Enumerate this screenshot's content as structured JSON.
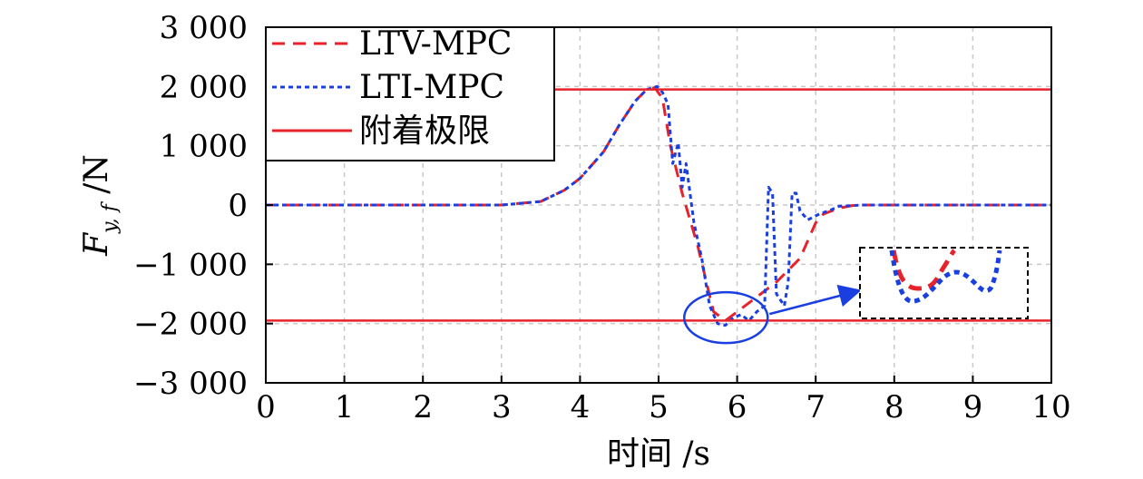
{
  "chart_data": {
    "type": "line",
    "title": "",
    "xlabel": "时间 /s",
    "ylabel": "F_{y,f} /N",
    "ylabel_main": "F",
    "ylabel_sub": "y, f",
    "ylabel_unit": " /N",
    "xlim": [
      0,
      10
    ],
    "ylim": [
      -3000,
      3000
    ],
    "x_ticks": [
      0,
      1,
      2,
      3,
      4,
      5,
      6,
      7,
      8,
      9,
      10
    ],
    "x_tick_labels": [
      "0",
      "1",
      "2",
      "3",
      "4",
      "5",
      "6",
      "7",
      "8",
      "9",
      "10"
    ],
    "y_ticks": [
      3000,
      2000,
      1000,
      0,
      -1000,
      -2000,
      -3000
    ],
    "y_tick_labels": [
      "3 000",
      "2 000",
      "1 000",
      "0",
      "−1 000",
      "−2 000",
      "−3 000"
    ],
    "grid": true,
    "legend_position": "top-left",
    "series": [
      {
        "name": "LTV-MPC",
        "color": "#e8222a",
        "style": "dashed",
        "points": [
          [
            0,
            0
          ],
          [
            3,
            0
          ],
          [
            3.5,
            60
          ],
          [
            3.8,
            250
          ],
          [
            4.0,
            450
          ],
          [
            4.3,
            900
          ],
          [
            4.5,
            1350
          ],
          [
            4.7,
            1750
          ],
          [
            4.85,
            1950
          ],
          [
            4.95,
            1980
          ],
          [
            5.05,
            1800
          ],
          [
            5.15,
            1000
          ],
          [
            5.3,
            200
          ],
          [
            5.5,
            -700
          ],
          [
            5.7,
            -1800
          ],
          [
            5.85,
            -1950
          ],
          [
            5.95,
            -1850
          ],
          [
            6.1,
            -1700
          ],
          [
            6.5,
            -1300
          ],
          [
            6.8,
            -900
          ],
          [
            7.0,
            -300
          ],
          [
            7.1,
            -150
          ],
          [
            7.3,
            -50
          ],
          [
            7.5,
            0
          ],
          [
            10,
            0
          ]
        ]
      },
      {
        "name": "LTI-MPC",
        "color": "#1a3fe0",
        "style": "dotted",
        "points": [
          [
            0,
            0
          ],
          [
            3,
            0
          ],
          [
            3.5,
            60
          ],
          [
            3.8,
            250
          ],
          [
            4.0,
            450
          ],
          [
            4.3,
            900
          ],
          [
            4.5,
            1350
          ],
          [
            4.7,
            1750
          ],
          [
            4.85,
            1950
          ],
          [
            4.98,
            2000
          ],
          [
            5.05,
            1900
          ],
          [
            5.12,
            1700
          ],
          [
            5.18,
            700
          ],
          [
            5.25,
            1050
          ],
          [
            5.3,
            300
          ],
          [
            5.35,
            700
          ],
          [
            5.45,
            -300
          ],
          [
            5.55,
            -900
          ],
          [
            5.65,
            -1700
          ],
          [
            5.75,
            -2000
          ],
          [
            5.85,
            -2030
          ],
          [
            5.95,
            -1900
          ],
          [
            6.05,
            -1850
          ],
          [
            6.15,
            -1950
          ],
          [
            6.25,
            -1800
          ],
          [
            6.35,
            -1700
          ],
          [
            6.4,
            300
          ],
          [
            6.45,
            200
          ],
          [
            6.5,
            -1500
          ],
          [
            6.55,
            -1600
          ],
          [
            6.6,
            -1700
          ],
          [
            6.65,
            -1300
          ],
          [
            6.7,
            200
          ],
          [
            6.75,
            200
          ],
          [
            6.8,
            -100
          ],
          [
            6.9,
            -250
          ],
          [
            7.05,
            -150
          ],
          [
            7.2,
            -80
          ],
          [
            7.3,
            -20
          ],
          [
            7.45,
            -10
          ],
          [
            7.6,
            0
          ],
          [
            10,
            0
          ]
        ]
      },
      {
        "name": "附着极限",
        "color": "#e8222a",
        "style": "solid",
        "horizontal_lines": [
          1950,
          -1950
        ]
      }
    ],
    "annotation": {
      "circle_center": [
        5.95,
        -1900
      ],
      "inset": "zoomed view of minimum region"
    }
  }
}
